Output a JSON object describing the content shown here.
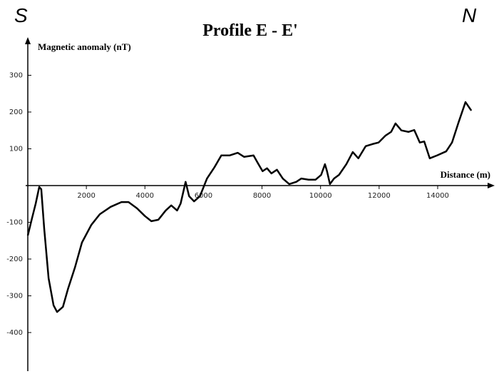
{
  "chart_data": {
    "type": "line",
    "title": "Profile E - E'",
    "annotations": [
      "S",
      "N"
    ],
    "y_label": "Magnetic anomaly (nT)",
    "x_label": "Distance (m)",
    "xlim": [
      0,
      15900
    ],
    "ylim": [
      -505,
      398
    ],
    "xticks": [
      2000,
      4000,
      6000,
      8000,
      10000,
      12000,
      14000
    ],
    "yticks": [
      -400,
      -300,
      -200,
      -100,
      100,
      200,
      300
    ],
    "x": [
      0,
      150,
      270,
      390,
      460,
      560,
      710,
      880,
      1000,
      1200,
      1370,
      1610,
      1850,
      2170,
      2460,
      2830,
      3200,
      3440,
      3730,
      4000,
      4220,
      4460,
      4710,
      4900,
      5100,
      5220,
      5390,
      5510,
      5680,
      5880,
      6120,
      6370,
      6610,
      6900,
      7170,
      7390,
      7710,
      7880,
      8020,
      8170,
      8320,
      8510,
      8710,
      8930,
      9170,
      9340,
      9590,
      9830,
      10020,
      10150,
      10220,
      10320,
      10460,
      10630,
      10880,
      11100,
      11290,
      11540,
      11780,
      11980,
      12220,
      12410,
      12560,
      12760,
      13000,
      13200,
      13390,
      13540,
      13730,
      13980,
      14290,
      14490,
      14710,
      14950,
      15150
    ],
    "series": [
      {
        "name": "Magnetic anomaly",
        "color": "#000000",
        "values": [
          -136,
          -87,
          -49,
          -4,
          -10,
          -117,
          -252,
          -326,
          -344,
          -330,
          -282,
          -223,
          -155,
          -107,
          -78,
          -58,
          -45,
          -45,
          -62,
          -83,
          -97,
          -93,
          -68,
          -54,
          -68,
          -49,
          10,
          -29,
          -43,
          -29,
          19,
          49,
          82,
          82,
          89,
          78,
          82,
          58,
          39,
          47,
          33,
          43,
          19,
          4,
          10,
          19,
          16,
          16,
          29,
          58,
          39,
          4,
          19,
          29,
          58,
          91,
          74,
          107,
          113,
          117,
          136,
          146,
          169,
          150,
          146,
          151,
          117,
          120,
          74,
          82,
          93,
          117,
          171,
          227,
          204
        ]
      }
    ]
  }
}
